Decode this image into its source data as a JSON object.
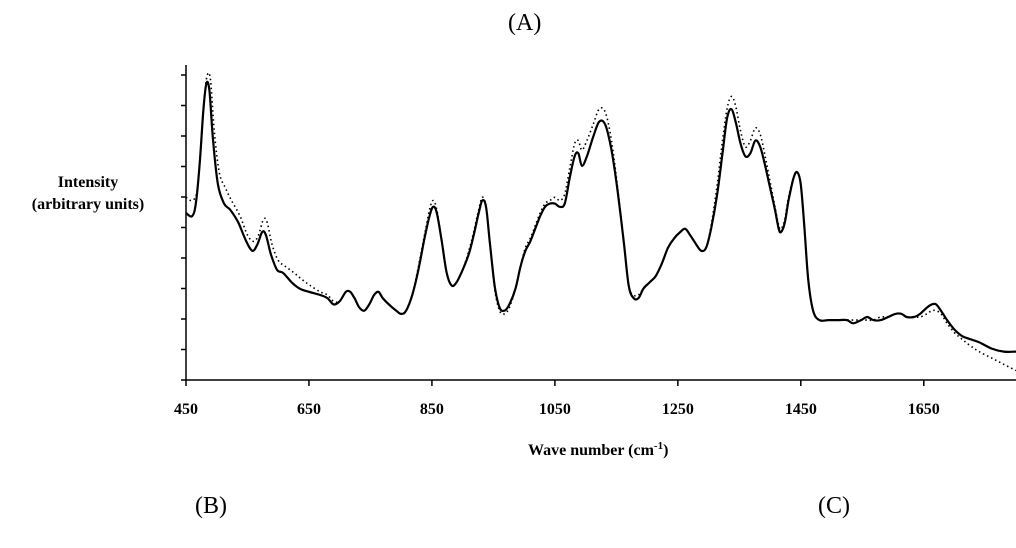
{
  "panels": {
    "a": "(A)",
    "b": "(B)",
    "c": "(C)"
  },
  "chart_data": {
    "type": "line",
    "title": "",
    "xlabel": "Wave number (cm",
    "xlabel_sup": "-1",
    "xlabel_tail": ")",
    "ylabel_line1": "Intensity",
    "ylabel_line2": "(arbitrary units)",
    "xlim": [
      450,
      1800
    ],
    "ylim": [
      0,
      100
    ],
    "x_ticks": [
      450,
      650,
      850,
      1050,
      1250,
      1450,
      1650
    ],
    "x_tick_labels": [
      "450",
      "650",
      "850",
      "1050",
      "1250",
      "1450",
      "1650"
    ],
    "y_minor_ticks": 10,
    "grid": false,
    "series": [
      {
        "style": "solid",
        "points": [
          [
            450,
            53
          ],
          [
            460,
            52
          ],
          [
            466,
            56
          ],
          [
            472,
            68
          ],
          [
            478,
            85
          ],
          [
            483,
            94
          ],
          [
            488,
            92
          ],
          [
            494,
            76
          ],
          [
            502,
            62
          ],
          [
            512,
            56
          ],
          [
            522,
            54
          ],
          [
            535,
            50
          ],
          [
            548,
            44
          ],
          [
            558,
            41
          ],
          [
            566,
            43
          ],
          [
            574,
            47
          ],
          [
            580,
            46
          ],
          [
            588,
            40
          ],
          [
            598,
            35
          ],
          [
            608,
            34
          ],
          [
            622,
            31
          ],
          [
            635,
            29
          ],
          [
            650,
            28
          ],
          [
            668,
            27
          ],
          [
            680,
            26
          ],
          [
            690,
            24
          ],
          [
            700,
            25
          ],
          [
            710,
            28
          ],
          [
            717,
            28
          ],
          [
            724,
            26
          ],
          [
            732,
            23
          ],
          [
            740,
            22
          ],
          [
            748,
            24
          ],
          [
            756,
            27
          ],
          [
            763,
            28
          ],
          [
            770,
            26
          ],
          [
            780,
            24
          ],
          [
            792,
            22
          ],
          [
            800,
            21
          ],
          [
            808,
            22
          ],
          [
            818,
            27
          ],
          [
            828,
            35
          ],
          [
            838,
            45
          ],
          [
            846,
            52
          ],
          [
            852,
            55
          ],
          [
            858,
            53
          ],
          [
            866,
            44
          ],
          [
            874,
            34
          ],
          [
            882,
            30
          ],
          [
            890,
            31
          ],
          [
            900,
            35
          ],
          [
            910,
            40
          ],
          [
            918,
            46
          ],
          [
            926,
            53
          ],
          [
            932,
            57
          ],
          [
            938,
            55
          ],
          [
            944,
            44
          ],
          [
            952,
            30
          ],
          [
            960,
            23
          ],
          [
            968,
            22
          ],
          [
            976,
            24
          ],
          [
            986,
            29
          ],
          [
            994,
            36
          ],
          [
            1002,
            41
          ],
          [
            1010,
            44
          ],
          [
            1018,
            48
          ],
          [
            1026,
            52
          ],
          [
            1034,
            55
          ],
          [
            1042,
            56
          ],
          [
            1050,
            56
          ],
          [
            1058,
            55
          ],
          [
            1066,
            56
          ],
          [
            1074,
            64
          ],
          [
            1082,
            71
          ],
          [
            1088,
            72
          ],
          [
            1094,
            68
          ],
          [
            1102,
            71
          ],
          [
            1112,
            77
          ],
          [
            1122,
            82
          ],
          [
            1132,
            81
          ],
          [
            1142,
            73
          ],
          [
            1152,
            60
          ],
          [
            1162,
            44
          ],
          [
            1170,
            30
          ],
          [
            1178,
            26
          ],
          [
            1186,
            26
          ],
          [
            1194,
            29
          ],
          [
            1204,
            31
          ],
          [
            1214,
            33
          ],
          [
            1224,
            37
          ],
          [
            1234,
            42
          ],
          [
            1244,
            45
          ],
          [
            1254,
            47
          ],
          [
            1262,
            48
          ],
          [
            1270,
            46
          ],
          [
            1280,
            43
          ],
          [
            1288,
            41
          ],
          [
            1296,
            42
          ],
          [
            1304,
            48
          ],
          [
            1314,
            59
          ],
          [
            1322,
            71
          ],
          [
            1330,
            83
          ],
          [
            1337,
            86
          ],
          [
            1344,
            82
          ],
          [
            1352,
            75
          ],
          [
            1360,
            71
          ],
          [
            1368,
            72
          ],
          [
            1376,
            76
          ],
          [
            1384,
            74
          ],
          [
            1392,
            68
          ],
          [
            1400,
            61
          ],
          [
            1408,
            54
          ],
          [
            1414,
            48
          ],
          [
            1418,
            47
          ],
          [
            1424,
            50
          ],
          [
            1430,
            57
          ],
          [
            1438,
            64
          ],
          [
            1444,
            66
          ],
          [
            1450,
            62
          ],
          [
            1456,
            48
          ],
          [
            1462,
            32
          ],
          [
            1470,
            22
          ],
          [
            1480,
            19
          ],
          [
            1495,
            19
          ],
          [
            1510,
            19
          ],
          [
            1525,
            19
          ],
          [
            1535,
            18
          ],
          [
            1548,
            19
          ],
          [
            1558,
            20
          ],
          [
            1568,
            19
          ],
          [
            1580,
            19
          ],
          [
            1592,
            20
          ],
          [
            1604,
            21
          ],
          [
            1614,
            21
          ],
          [
            1622,
            20
          ],
          [
            1634,
            20
          ],
          [
            1644,
            21
          ],
          [
            1655,
            23
          ],
          [
            1663,
            24
          ],
          [
            1670,
            24
          ],
          [
            1678,
            22
          ],
          [
            1688,
            19
          ],
          [
            1700,
            16
          ],
          [
            1712,
            14
          ],
          [
            1725,
            13
          ],
          [
            1740,
            12
          ],
          [
            1760,
            10
          ],
          [
            1780,
            9
          ],
          [
            1800,
            9
          ]
        ]
      },
      {
        "style": "dotted",
        "points": [
          [
            450,
            58
          ],
          [
            460,
            57
          ],
          [
            468,
            60
          ],
          [
            474,
            73
          ],
          [
            480,
            90
          ],
          [
            485,
            97
          ],
          [
            490,
            95
          ],
          [
            496,
            79
          ],
          [
            504,
            66
          ],
          [
            514,
            61
          ],
          [
            524,
            57
          ],
          [
            538,
            52
          ],
          [
            550,
            46
          ],
          [
            560,
            44
          ],
          [
            568,
            46
          ],
          [
            576,
            51
          ],
          [
            582,
            50
          ],
          [
            590,
            43
          ],
          [
            600,
            38
          ],
          [
            612,
            36
          ],
          [
            626,
            34
          ],
          [
            638,
            32
          ],
          [
            652,
            30
          ],
          [
            668,
            28
          ],
          [
            680,
            27
          ],
          [
            690,
            25
          ],
          [
            700,
            25
          ],
          [
            710,
            28
          ],
          [
            717,
            28
          ],
          [
            724,
            26
          ],
          [
            732,
            23
          ],
          [
            740,
            22
          ],
          [
            748,
            24
          ],
          [
            756,
            27
          ],
          [
            763,
            28
          ],
          [
            770,
            26
          ],
          [
            780,
            24
          ],
          [
            792,
            22
          ],
          [
            800,
            21
          ],
          [
            808,
            22
          ],
          [
            818,
            27
          ],
          [
            828,
            36
          ],
          [
            838,
            46
          ],
          [
            846,
            54
          ],
          [
            852,
            57
          ],
          [
            858,
            54
          ],
          [
            866,
            44
          ],
          [
            874,
            34
          ],
          [
            882,
            30
          ],
          [
            890,
            31
          ],
          [
            900,
            35
          ],
          [
            910,
            41
          ],
          [
            918,
            47
          ],
          [
            926,
            54
          ],
          [
            932,
            58
          ],
          [
            938,
            55
          ],
          [
            944,
            44
          ],
          [
            952,
            29
          ],
          [
            960,
            22
          ],
          [
            968,
            21
          ],
          [
            976,
            23
          ],
          [
            986,
            29
          ],
          [
            994,
            36
          ],
          [
            1002,
            42
          ],
          [
            1010,
            45
          ],
          [
            1018,
            49
          ],
          [
            1026,
            53
          ],
          [
            1034,
            56
          ],
          [
            1042,
            57
          ],
          [
            1050,
            58
          ],
          [
            1058,
            57
          ],
          [
            1066,
            59
          ],
          [
            1074,
            67
          ],
          [
            1082,
            75
          ],
          [
            1088,
            76
          ],
          [
            1094,
            73
          ],
          [
            1102,
            76
          ],
          [
            1112,
            81
          ],
          [
            1122,
            86
          ],
          [
            1132,
            85
          ],
          [
            1142,
            76
          ],
          [
            1152,
            61
          ],
          [
            1162,
            44
          ],
          [
            1170,
            30
          ],
          [
            1178,
            27
          ],
          [
            1186,
            27
          ],
          [
            1194,
            29
          ],
          [
            1204,
            31
          ],
          [
            1214,
            33
          ],
          [
            1224,
            37
          ],
          [
            1234,
            42
          ],
          [
            1244,
            45
          ],
          [
            1254,
            47
          ],
          [
            1262,
            48
          ],
          [
            1270,
            46
          ],
          [
            1280,
            43
          ],
          [
            1288,
            41
          ],
          [
            1296,
            42
          ],
          [
            1304,
            49
          ],
          [
            1314,
            62
          ],
          [
            1322,
            75
          ],
          [
            1330,
            86
          ],
          [
            1337,
            90
          ],
          [
            1344,
            87
          ],
          [
            1352,
            79
          ],
          [
            1360,
            74
          ],
          [
            1368,
            76
          ],
          [
            1376,
            80
          ],
          [
            1384,
            78
          ],
          [
            1392,
            71
          ],
          [
            1400,
            63
          ],
          [
            1408,
            55
          ],
          [
            1414,
            49
          ],
          [
            1418,
            48
          ],
          [
            1424,
            51
          ],
          [
            1430,
            58
          ],
          [
            1438,
            64
          ],
          [
            1444,
            66
          ],
          [
            1450,
            62
          ],
          [
            1456,
            48
          ],
          [
            1462,
            32
          ],
          [
            1470,
            22
          ],
          [
            1480,
            19
          ],
          [
            1495,
            19
          ],
          [
            1510,
            19
          ],
          [
            1525,
            19
          ],
          [
            1535,
            19
          ],
          [
            1548,
            19
          ],
          [
            1558,
            19
          ],
          [
            1568,
            19
          ],
          [
            1580,
            20
          ],
          [
            1592,
            20
          ],
          [
            1604,
            21
          ],
          [
            1614,
            21
          ],
          [
            1622,
            20
          ],
          [
            1634,
            20
          ],
          [
            1644,
            20
          ],
          [
            1655,
            21
          ],
          [
            1663,
            22
          ],
          [
            1670,
            22
          ],
          [
            1678,
            21
          ],
          [
            1688,
            18
          ],
          [
            1700,
            15
          ],
          [
            1712,
            13
          ],
          [
            1725,
            11
          ],
          [
            1740,
            9
          ],
          [
            1760,
            7
          ],
          [
            1780,
            5
          ],
          [
            1800,
            3
          ]
        ]
      }
    ]
  }
}
